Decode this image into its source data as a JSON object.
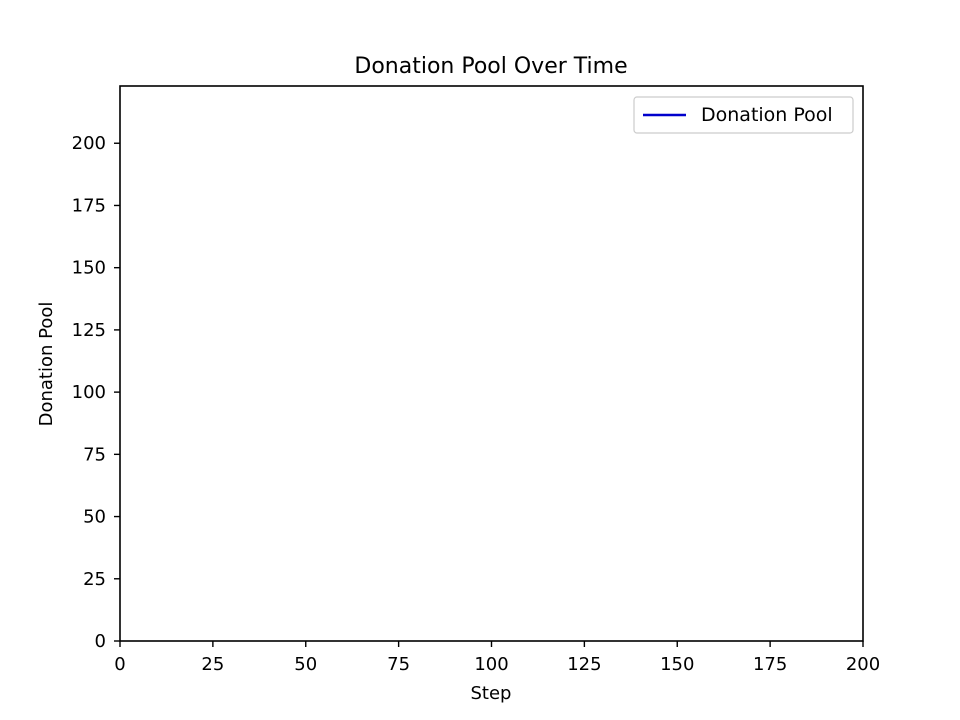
{
  "chart_data": {
    "type": "line",
    "title": "Donation Pool Over Time",
    "xlabel": "Step",
    "ylabel": "Donation Pool",
    "xlim": [
      0,
      200
    ],
    "ylim": [
      0,
      223
    ],
    "xticks": [
      0,
      25,
      50,
      75,
      100,
      125,
      150,
      175,
      200
    ],
    "yticks": [
      0,
      25,
      50,
      75,
      100,
      125,
      150,
      175,
      200
    ],
    "grid": false,
    "legend_position": "top-right",
    "series": [
      {
        "name": "Donation Pool",
        "color": "#0000cc",
        "x": [],
        "y": []
      }
    ]
  }
}
